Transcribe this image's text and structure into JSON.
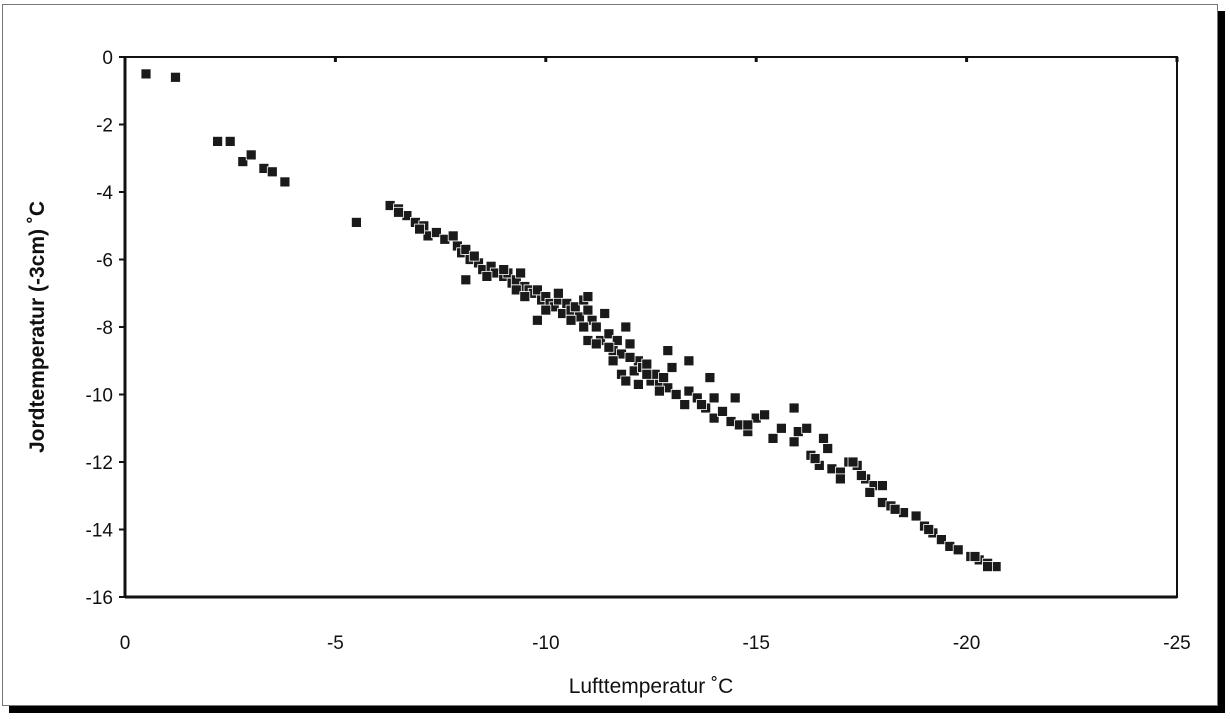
{
  "chart_data": {
    "type": "scatter",
    "title": "",
    "xlabel": "Lufttemperatur ˚C",
    "ylabel": "Jordtemperatur (-3cm)  ˚C",
    "xlim": [
      0,
      -25
    ],
    "ylim": [
      -16,
      0
    ],
    "x_ticks": [
      "0",
      "-5",
      "-10",
      "-15",
      "-20",
      "-25"
    ],
    "y_ticks": [
      "0",
      "-2",
      "-4",
      "-6",
      "-8",
      "-10",
      "-12",
      "-14",
      "-16"
    ],
    "grid": false,
    "legend": "none",
    "marker": "square",
    "marker_color": "#1a1a1a",
    "series": [
      {
        "points": [
          [
            -0.5,
            -0.5
          ],
          [
            -1.2,
            -0.6
          ],
          [
            -2.2,
            -2.5
          ],
          [
            -2.5,
            -2.5
          ],
          [
            -2.8,
            -3.1
          ],
          [
            -3.0,
            -2.9
          ],
          [
            -3.3,
            -3.3
          ],
          [
            -3.5,
            -3.4
          ],
          [
            -3.8,
            -3.7
          ],
          [
            -5.5,
            -4.9
          ],
          [
            -6.3,
            -4.4
          ],
          [
            -6.5,
            -4.5
          ],
          [
            -6.7,
            -4.7
          ],
          [
            -6.9,
            -4.9
          ],
          [
            -7.1,
            -5.0
          ],
          [
            -7.2,
            -5.3
          ],
          [
            -7.4,
            -5.2
          ],
          [
            -7.6,
            -5.4
          ],
          [
            -7.8,
            -5.3
          ],
          [
            -7.9,
            -5.6
          ],
          [
            -8.0,
            -5.8
          ],
          [
            -8.1,
            -5.7
          ],
          [
            -8.2,
            -6.0
          ],
          [
            -8.1,
            -6.6
          ],
          [
            -8.4,
            -6.1
          ],
          [
            -8.5,
            -6.3
          ],
          [
            -8.7,
            -6.2
          ],
          [
            -8.8,
            -6.4
          ],
          [
            -9.0,
            -6.5
          ],
          [
            -9.1,
            -6.4
          ],
          [
            -9.2,
            -6.7
          ],
          [
            -9.3,
            -6.6
          ],
          [
            -9.4,
            -6.4
          ],
          [
            -9.5,
            -6.8
          ],
          [
            -9.6,
            -6.9
          ],
          [
            -9.7,
            -7.0
          ],
          [
            -9.8,
            -6.9
          ],
          [
            -9.9,
            -7.2
          ],
          [
            -10.0,
            -7.1
          ],
          [
            -10.1,
            -7.3
          ],
          [
            -10.2,
            -7.4
          ],
          [
            -10.3,
            -7.2
          ],
          [
            -10.4,
            -7.6
          ],
          [
            -10.5,
            -7.3
          ],
          [
            -10.6,
            -7.5
          ],
          [
            -10.7,
            -7.4
          ],
          [
            -10.8,
            -7.7
          ],
          [
            -10.9,
            -7.2
          ],
          [
            -11.0,
            -7.1
          ],
          [
            -11.1,
            -7.8
          ],
          [
            -11.2,
            -8.0
          ],
          [
            -11.0,
            -8.4
          ],
          [
            -11.3,
            -8.4
          ],
          [
            -11.4,
            -7.6
          ],
          [
            -11.5,
            -8.2
          ],
          [
            -11.6,
            -8.7
          ],
          [
            -11.7,
            -8.4
          ],
          [
            -11.8,
            -8.8
          ],
          [
            -11.9,
            -8.0
          ],
          [
            -12.0,
            -8.5
          ],
          [
            -12.1,
            -9.3
          ],
          [
            -12.2,
            -9.0
          ],
          [
            -12.3,
            -9.2
          ],
          [
            -12.4,
            -9.1
          ],
          [
            -12.5,
            -9.6
          ],
          [
            -12.6,
            -9.4
          ],
          [
            -12.7,
            -9.7
          ],
          [
            -12.8,
            -9.5
          ],
          [
            -12.9,
            -9.8
          ],
          [
            -13.0,
            -9.2
          ],
          [
            -13.1,
            -10.0
          ],
          [
            -13.3,
            -10.3
          ],
          [
            -13.4,
            -9.9
          ],
          [
            -13.6,
            -10.1
          ],
          [
            -13.8,
            -10.4
          ],
          [
            -14.0,
            -10.7
          ],
          [
            -14.2,
            -10.5
          ],
          [
            -14.4,
            -10.8
          ],
          [
            -14.6,
            -10.9
          ],
          [
            -14.8,
            -11.1
          ],
          [
            -15.0,
            -10.7
          ],
          [
            -15.2,
            -10.6
          ],
          [
            -15.4,
            -11.3
          ],
          [
            -15.6,
            -11.0
          ],
          [
            -15.9,
            -11.4
          ],
          [
            -16.0,
            -11.1
          ],
          [
            -16.2,
            -11.0
          ],
          [
            -16.3,
            -11.8
          ],
          [
            -16.5,
            -12.1
          ],
          [
            -16.7,
            -11.6
          ],
          [
            -16.8,
            -12.2
          ],
          [
            -17.0,
            -12.3
          ],
          [
            -17.2,
            -12.0
          ],
          [
            -17.4,
            -12.1
          ],
          [
            -17.6,
            -12.5
          ],
          [
            -17.8,
            -12.7
          ],
          [
            -18.0,
            -13.2
          ],
          [
            -18.2,
            -13.3
          ],
          [
            -18.5,
            -13.5
          ],
          [
            -18.8,
            -13.6
          ],
          [
            -19.0,
            -13.9
          ],
          [
            -19.2,
            -14.1
          ],
          [
            -19.4,
            -14.3
          ],
          [
            -19.6,
            -14.5
          ],
          [
            -19.8,
            -14.6
          ],
          [
            -20.1,
            -14.8
          ],
          [
            -20.3,
            -14.9
          ],
          [
            -20.5,
            -15.0
          ],
          [
            -20.7,
            -15.1
          ],
          [
            -6.5,
            -4.6
          ],
          [
            -7.0,
            -5.1
          ],
          [
            -8.3,
            -5.9
          ],
          [
            -8.6,
            -6.5
          ],
          [
            -9.0,
            -6.3
          ],
          [
            -9.3,
            -6.9
          ],
          [
            -9.5,
            -7.1
          ],
          [
            -9.8,
            -7.8
          ],
          [
            -10.0,
            -7.5
          ],
          [
            -10.3,
            -7.0
          ],
          [
            -10.6,
            -7.8
          ],
          [
            -10.9,
            -8.0
          ],
          [
            -11.0,
            -7.5
          ],
          [
            -11.2,
            -8.5
          ],
          [
            -11.5,
            -8.6
          ],
          [
            -11.6,
            -9.0
          ],
          [
            -11.8,
            -9.4
          ],
          [
            -11.9,
            -9.6
          ],
          [
            -12.0,
            -8.9
          ],
          [
            -12.2,
            -9.7
          ],
          [
            -12.4,
            -9.4
          ],
          [
            -12.7,
            -9.9
          ],
          [
            -12.9,
            -8.7
          ],
          [
            -13.4,
            -9.0
          ],
          [
            -13.7,
            -10.3
          ],
          [
            -13.9,
            -9.5
          ],
          [
            -14.0,
            -10.1
          ],
          [
            -14.5,
            -10.1
          ],
          [
            -14.8,
            -10.9
          ],
          [
            -15.9,
            -10.4
          ],
          [
            -16.4,
            -11.9
          ],
          [
            -16.6,
            -11.3
          ],
          [
            -17.0,
            -12.5
          ],
          [
            -17.3,
            -12.0
          ],
          [
            -17.5,
            -12.4
          ],
          [
            -17.7,
            -12.9
          ],
          [
            -18.0,
            -12.7
          ],
          [
            -18.3,
            -13.4
          ],
          [
            -19.1,
            -14.0
          ],
          [
            -20.2,
            -14.8
          ],
          [
            -20.5,
            -15.1
          ]
        ]
      }
    ]
  }
}
